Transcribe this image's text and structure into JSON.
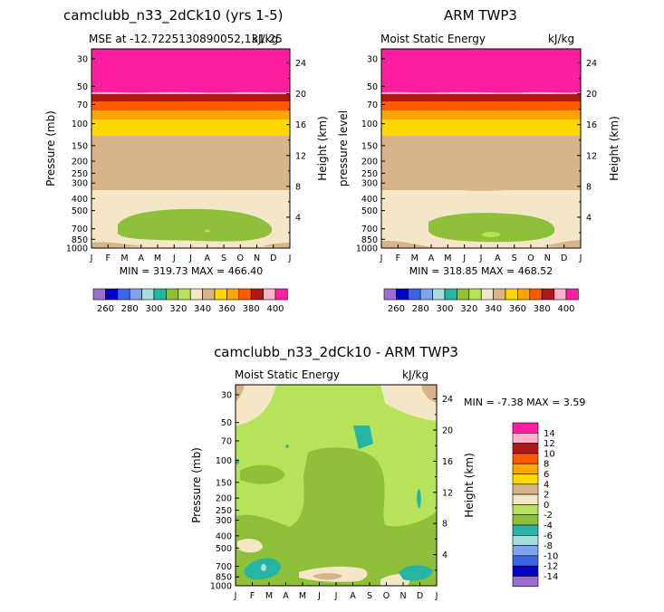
{
  "panels": [
    {
      "title": "camclubb_n33_2dCk10 (yrs 1-5)",
      "subtitle_left": "MSE at -12.7225130890052,131.25",
      "subtitle_right": "kJ/kg",
      "ylabel_left": "Pressure (mb)",
      "ylabel_right": "Height (km)",
      "minmax": "MIN = 319.73  MAX = 466.40"
    },
    {
      "title": "ARM TWP3",
      "subtitle_left": "Moist Static Energy",
      "subtitle_right": "kJ/kg",
      "ylabel_left": "pressure level",
      "ylabel_right": "Height (km)",
      "minmax": "MIN = 318.85  MAX = 468.52"
    },
    {
      "title": "camclubb_n33_2dCk10 - ARM TWP3",
      "subtitle_left": "Moist Static Energy",
      "subtitle_right": "kJ/kg",
      "ylabel_left": "Pressure (mb)",
      "ylabel_right": "Height (km)",
      "minmax": "MIN =   -7.38 MAX =    3.59"
    }
  ],
  "chart_data": [
    {
      "type": "heatmap",
      "title": "camclubb_n33_2dCk10 (yrs 1-5)",
      "x_ticks": [
        "J",
        "F",
        "M",
        "A",
        "M",
        "J",
        "J",
        "A",
        "S",
        "O",
        "N",
        "D",
        "J"
      ],
      "pressure_ticks": [
        "30",
        "50",
        "70",
        "100",
        "150",
        "200",
        "250",
        "300",
        "400",
        "500",
        "700",
        "850",
        "1000"
      ],
      "pressure_values": [
        30,
        50,
        70,
        100,
        150,
        200,
        250,
        300,
        400,
        500,
        700,
        850,
        1000
      ],
      "height_ticks": [
        "24",
        "20",
        "16",
        "12",
        "8",
        "4"
      ],
      "height_values": [
        24,
        20,
        16,
        12,
        8,
        4
      ],
      "ylim_mb": [
        1000,
        25
      ],
      "levels": [
        260,
        270,
        280,
        290,
        300,
        310,
        320,
        330,
        340,
        350,
        360,
        370,
        380,
        390,
        400
      ],
      "bands_mb": [
        {
          "top": 25,
          "bottom": 57,
          "value": 400
        },
        {
          "top": 57,
          "bottom": 64,
          "value": 395
        },
        {
          "top": 64,
          "bottom": 72,
          "value": 385
        },
        {
          "top": 72,
          "bottom": 82,
          "value": 375
        },
        {
          "top": 82,
          "bottom": 94,
          "value": 365
        },
        {
          "top": 94,
          "bottom": 120,
          "value": 355
        },
        {
          "top": 120,
          "bottom": 330,
          "value": 345
        },
        {
          "top": 330,
          "bottom": 1000,
          "value": 335
        }
      ],
      "blobs": [
        {
          "value": 325,
          "level": "330"
        },
        {
          "value": 315,
          "level": "320"
        }
      ],
      "minmax": {
        "min": 319.73,
        "max": 466.4
      }
    },
    {
      "type": "heatmap",
      "title": "ARM TWP3",
      "levels": [
        260,
        270,
        280,
        290,
        300,
        310,
        320,
        330,
        340,
        350,
        360,
        370,
        380,
        390,
        400
      ],
      "minmax": {
        "min": 318.85,
        "max": 468.52
      }
    },
    {
      "type": "heatmap",
      "title": "camclubb_n33_2dCk10 - ARM TWP3",
      "levels": [
        -14,
        -12,
        -10,
        -8,
        -6,
        -4,
        -2,
        0,
        2,
        4,
        6,
        8,
        10,
        12,
        14
      ],
      "legend_labels": [
        "14",
        "12",
        "10",
        "8",
        "6",
        "4",
        "2",
        "0",
        "-2",
        "-4",
        "-6",
        "-8",
        "-10",
        "-12",
        "-14"
      ],
      "minmax": {
        "min": -7.38,
        "max": 3.59
      }
    }
  ],
  "colorbar_top": {
    "colors": [
      "#9a6fd1",
      "#0000c8",
      "#3c64e6",
      "#7fa3ee",
      "#a3dfe0",
      "#26b4a4",
      "#8fc03a",
      "#b6e35a",
      "#f5e6c8",
      "#d7b48a",
      "#ffd800",
      "#ffa500",
      "#ff5a00",
      "#b01818",
      "#ffb2c8",
      "#ff1f9e"
    ],
    "labels": [
      "260",
      "280",
      "300",
      "320",
      "340",
      "360",
      "380",
      "400"
    ]
  },
  "colorbar_diff": {
    "colors": [
      "#ff1f9e",
      "#ffb2c8",
      "#b01818",
      "#ff5a00",
      "#ffa500",
      "#ffd800",
      "#d7b48a",
      "#f5e6c8",
      "#b6e35a",
      "#8fc03a",
      "#26b4a4",
      "#a3dfe0",
      "#7fa3ee",
      "#3c64e6",
      "#0000c8",
      "#9a6fd1"
    ],
    "labels": [
      "14",
      "12",
      "10",
      "8",
      "6",
      "4",
      "2",
      "0",
      "-2",
      "-4",
      "-6",
      "-8",
      "-10",
      "-12",
      "-14"
    ]
  }
}
